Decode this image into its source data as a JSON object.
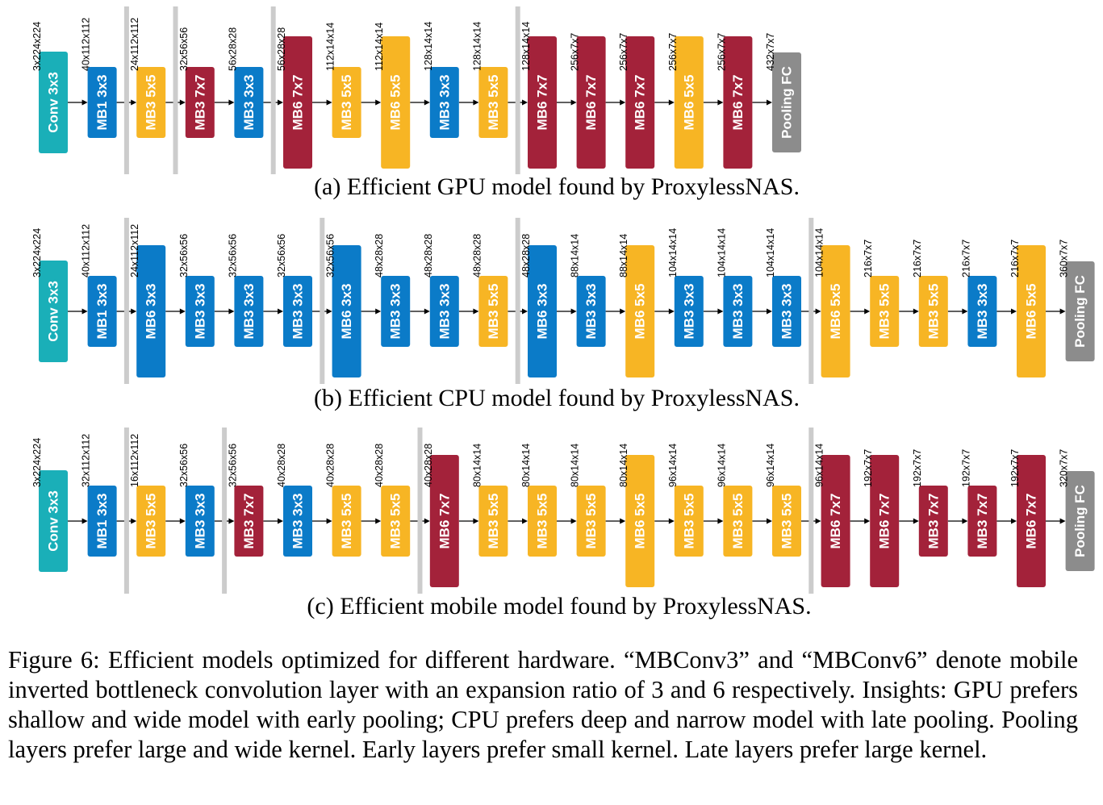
{
  "colors": {
    "Conv": "#1aafb8",
    "Pooling": "#8c8c8c",
    "MB1 3x3": "#0b7bc8",
    "MB3 3x3": "#0b7bc8",
    "MB6 3x3": "#0b7bc8",
    "MB3 5x5": "#f7b524",
    "MB6 5x5": "#f7b524",
    "MB3 7x7": "#a3223a",
    "MB6 7x7": "#a3223a",
    "pool_bar": "#cccccc"
  },
  "panels": [
    {
      "caption": "(a) Efficient GPU model found by ProxylessNAS.",
      "blocks": [
        "Conv 3x3",
        "MB1 3x3",
        "MB3 5x5",
        "MB3 7x7",
        "MB3 3x3",
        "MB6 7x7",
        "MB3 5x5",
        "MB6 5x5",
        "MB3 3x3",
        "MB3 5x5",
        "MB6 7x7",
        "MB6 7x7",
        "MB6 7x7",
        "MB6 5x5",
        "MB6 7x7",
        "Pooling FC"
      ],
      "dims": [
        "3x224x224",
        "40x112x112",
        "24x112x112",
        "32x56x56",
        "56x28x28",
        "56x28x28",
        "112x14x14",
        "112x14x14",
        "128x14x14",
        "128x14x14",
        "128x14x14",
        "256x7x7",
        "256x7x7",
        "256x7x7",
        "256x7x7",
        "432x7x7"
      ],
      "pool_after": [
        1,
        2,
        4,
        9
      ]
    },
    {
      "caption": "(b) Efficient CPU model found by ProxylessNAS.",
      "blocks": [
        "Conv 3x3",
        "MB1 3x3",
        "MB6 3x3",
        "MB3 3x3",
        "MB3 3x3",
        "MB3 3x3",
        "MB6 3x3",
        "MB3 3x3",
        "MB3 3x3",
        "MB3 5x5",
        "MB6 3x3",
        "MB3 3x3",
        "MB6 5x5",
        "MB3 3x3",
        "MB3 3x3",
        "MB3 3x3",
        "MB6 5x5",
        "MB3 5x5",
        "MB3 5x5",
        "MB3 3x3",
        "MB6 5x5",
        "Pooling FC"
      ],
      "dims": [
        "3x224x224",
        "40x112x112",
        "24x112x112",
        "32x56x56",
        "32x56x56",
        "32x56x56",
        "32x56x56",
        "48x28x28",
        "48x28x28",
        "48x28x28",
        "48x28x28",
        "88x14x14",
        "88x14x14",
        "104x14x14",
        "104x14x14",
        "104x14x14",
        "104x14x14",
        "216x7x7",
        "216x7x7",
        "216x7x7",
        "216x7x7",
        "360x7x7"
      ],
      "pool_after": [
        1,
        5,
        9,
        15
      ]
    },
    {
      "caption": "(c) Efficient mobile model found by ProxylessNAS.",
      "blocks": [
        "Conv 3x3",
        "MB1 3x3",
        "MB3 5x5",
        "MB3 3x3",
        "MB3 7x7",
        "MB3 3x3",
        "MB3 5x5",
        "MB3 5x5",
        "MB6 7x7",
        "MB3 5x5",
        "MB3 5x5",
        "MB3 5x5",
        "MB6 5x5",
        "MB3 5x5",
        "MB3 5x5",
        "MB3 5x5",
        "MB6 7x7",
        "MB6 7x7",
        "MB3 7x7",
        "MB3 7x7",
        "MB6 7x7",
        "Pooling FC"
      ],
      "dims": [
        "3x224x224",
        "32x112x112",
        "16x112x112",
        "32x56x56",
        "32x56x56",
        "40x28x28",
        "40x28x28",
        "40x28x28",
        "40x28x28",
        "80x14x14",
        "80x14x14",
        "80x14x14",
        "80x14x14",
        "96x14x14",
        "96x14x14",
        "96x14x14",
        "96x14x14",
        "192x7x7",
        "192x7x7",
        "192x7x7",
        "192x7x7",
        "320x7x7"
      ],
      "pool_after": [
        1,
        3,
        7,
        15
      ]
    }
  ],
  "figure_caption": "Figure 6: Efficient models optimized for different hardware. “MBConv3” and “MBConv6” denote mobile inverted bottleneck convolution layer with an expansion ratio of 3 and 6 respectively. Insights: GPU prefers shallow and wide model with early pooling; CPU prefers deep and narrow model with late pooling. Pooling layers prefer large and wide kernel. Early layers prefer small kernel. Late layers prefer large kernel."
}
